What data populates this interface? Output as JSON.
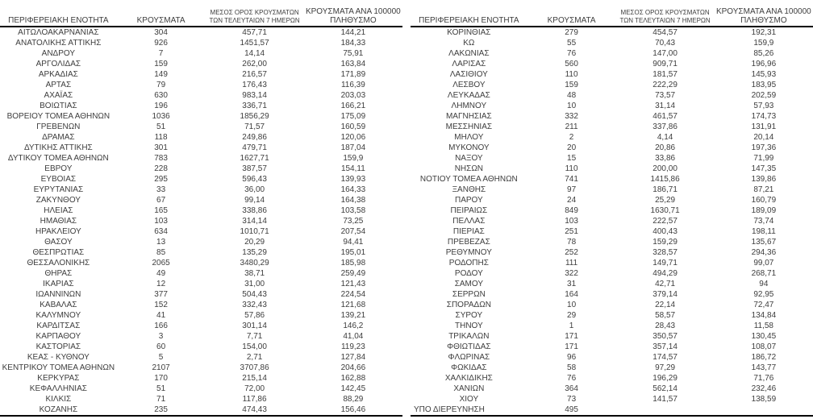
{
  "header": {
    "col_region": "ΠΕΡΙΦΕΡΕΙΑΚΗ ΕΝΟΤΗΤΑ",
    "col_cases": "ΚΡΟΥΣΜΑΤΑ",
    "col_avg7_line1": "ΜΕΣΟΣ ΟΡΟΣ ΚΡΟΥΣΜΑΤΩΝ",
    "col_avg7_line2": "ΤΩΝ ΤΕΛΕΥΤΑΙΩΝ 7 ΗΜΕΡΩΝ",
    "col_per100k_line1": "ΚΡΟΥΣΜΑΤΑ ΑΝΑ 100000",
    "col_per100k_line2": "ΠΛΗΘΥΣΜΟ"
  },
  "colors": {
    "text": "#3d3d3d",
    "border": "#000000",
    "background": "#ffffff"
  },
  "left_table": {
    "rows": [
      [
        "ΑΙΤΩΛΟΑΚΑΡΝΑΝΙΑΣ",
        "304",
        "457,71",
        "144,21"
      ],
      [
        "ΑΝΑΤΟΛΙΚΗΣ ΑΤΤΙΚΗΣ",
        "926",
        "1451,57",
        "184,33"
      ],
      [
        "ΑΝΔΡΟΥ",
        "7",
        "14,14",
        "75,91"
      ],
      [
        "ΑΡΓΟΛΙΔΑΣ",
        "159",
        "262,00",
        "163,84"
      ],
      [
        "ΑΡΚΑΔΙΑΣ",
        "149",
        "216,57",
        "171,89"
      ],
      [
        "ΑΡΤΑΣ",
        "79",
        "176,43",
        "116,39"
      ],
      [
        "ΑΧΑΪΑΣ",
        "630",
        "983,14",
        "203,03"
      ],
      [
        "ΒΟΙΩΤΙΑΣ",
        "196",
        "336,71",
        "166,21"
      ],
      [
        "ΒΟΡΕΙΟΥ ΤΟΜΕΑ ΑΘΗΝΩΝ",
        "1036",
        "1856,29",
        "175,09"
      ],
      [
        "ΓΡΕΒΕΝΩΝ",
        "51",
        "71,57",
        "160,59"
      ],
      [
        "ΔΡΑΜΑΣ",
        "118",
        "249,86",
        "120,06"
      ],
      [
        "ΔΥΤΙΚΗΣ ΑΤΤΙΚΗΣ",
        "301",
        "479,71",
        "187,04"
      ],
      [
        "ΔΥΤΙΚΟΥ ΤΟΜΕΑ ΑΘΗΝΩΝ",
        "783",
        "1627,71",
        "159,9"
      ],
      [
        "ΕΒΡΟΥ",
        "228",
        "387,57",
        "154,11"
      ],
      [
        "ΕΥΒΟΙΑΣ",
        "295",
        "596,43",
        "139,93"
      ],
      [
        "ΕΥΡΥΤΑΝΙΑΣ",
        "33",
        "36,00",
        "164,33"
      ],
      [
        "ΖΑΚΥΝΘΟΥ",
        "67",
        "99,14",
        "164,38"
      ],
      [
        "ΗΛΕΙΑΣ",
        "165",
        "338,86",
        "103,58"
      ],
      [
        "ΗΜΑΘΙΑΣ",
        "103",
        "314,14",
        "73,25"
      ],
      [
        "ΗΡΑΚΛΕΙΟΥ",
        "634",
        "1010,71",
        "207,54"
      ],
      [
        "ΘΑΣΟΥ",
        "13",
        "20,29",
        "94,41"
      ],
      [
        "ΘΕΣΠΡΩΤΙΑΣ",
        "85",
        "135,29",
        "195,01"
      ],
      [
        "ΘΕΣΣΑΛΟΝΙΚΗΣ",
        "2065",
        "3480,29",
        "185,98"
      ],
      [
        "ΘΗΡΑΣ",
        "49",
        "38,71",
        "259,49"
      ],
      [
        "ΙΚΑΡΙΑΣ",
        "12",
        "31,00",
        "121,43"
      ],
      [
        "ΙΩΑΝΝΙΝΩΝ",
        "377",
        "504,43",
        "224,54"
      ],
      [
        "ΚΑΒΑΛΑΣ",
        "152",
        "332,43",
        "121,68"
      ],
      [
        "ΚΑΛΥΜΝΟΥ",
        "41",
        "57,86",
        "139,21"
      ],
      [
        "ΚΑΡΔΙΤΣΑΣ",
        "166",
        "301,14",
        "146,2"
      ],
      [
        "ΚΑΡΠΑΘΟΥ",
        "3",
        "7,71",
        "41,04"
      ],
      [
        "ΚΑΣΤΟΡΙΑΣ",
        "60",
        "154,00",
        "119,23"
      ],
      [
        "ΚΕΑΣ - ΚΥΘΝΟΥ",
        "5",
        "2,71",
        "127,84"
      ],
      [
        "ΚΕΝΤΡΙΚΟΥ ΤΟΜΕΑ ΑΘΗΝΩΝ",
        "2107",
        "3707,86",
        "204,66"
      ],
      [
        "ΚΕΡΚΥΡΑΣ",
        "170",
        "215,14",
        "162,88"
      ],
      [
        "ΚΕΦΑΛΛΗΝΙΑΣ",
        "51",
        "72,00",
        "142,45"
      ],
      [
        "ΚΙΛΚΙΣ",
        "71",
        "117,86",
        "88,29"
      ],
      [
        "ΚΟΖΑΝΗΣ",
        "235",
        "474,43",
        "156,46"
      ]
    ]
  },
  "right_table": {
    "rows": [
      [
        "ΚΟΡΙΝΘΙΑΣ",
        "279",
        "454,57",
        "192,31"
      ],
      [
        "ΚΩ",
        "55",
        "70,43",
        "159,9"
      ],
      [
        "ΛΑΚΩΝΙΑΣ",
        "76",
        "147,00",
        "85,26"
      ],
      [
        "ΛΑΡΙΣΑΣ",
        "560",
        "909,71",
        "196,96"
      ],
      [
        "ΛΑΣΙΘΙΟΥ",
        "110",
        "181,57",
        "145,93"
      ],
      [
        "ΛΕΣΒΟΥ",
        "159",
        "222,29",
        "183,95"
      ],
      [
        "ΛΕΥΚΑΔΑΣ",
        "48",
        "73,57",
        "202,59"
      ],
      [
        "ΛΗΜΝΟΥ",
        "10",
        "31,14",
        "57,93"
      ],
      [
        "ΜΑΓΝΗΣΙΑΣ",
        "332",
        "461,57",
        "174,73"
      ],
      [
        "ΜΕΣΣΗΝΙΑΣ",
        "211",
        "337,86",
        "131,91"
      ],
      [
        "ΜΗΛΟΥ",
        "2",
        "4,14",
        "20,14"
      ],
      [
        "ΜΥΚΟΝΟΥ",
        "20",
        "20,86",
        "197,36"
      ],
      [
        "ΝΑΞΟΥ",
        "15",
        "33,86",
        "71,99"
      ],
      [
        "ΝΗΣΩΝ",
        "110",
        "200,00",
        "147,35"
      ],
      [
        "ΝΟΤΙΟΥ ΤΟΜΕΑ ΑΘΗΝΩΝ",
        "741",
        "1415,86",
        "139,86"
      ],
      [
        "ΞΑΝΘΗΣ",
        "97",
        "186,71",
        "87,21"
      ],
      [
        "ΠΑΡΟΥ",
        "24",
        "25,29",
        "160,79"
      ],
      [
        "ΠΕΙΡΑΙΩΣ",
        "849",
        "1630,71",
        "189,09"
      ],
      [
        "ΠΕΛΛΑΣ",
        "103",
        "222,57",
        "73,74"
      ],
      [
        "ΠΙΕΡΙΑΣ",
        "251",
        "400,43",
        "198,11"
      ],
      [
        "ΠΡΕΒΕΖΑΣ",
        "78",
        "159,29",
        "135,67"
      ],
      [
        "ΡΕΘΥΜΝΟΥ",
        "252",
        "328,57",
        "294,36"
      ],
      [
        "ΡΟΔΟΠΗΣ",
        "111",
        "149,71",
        "99,07"
      ],
      [
        "ΡΟΔΟΥ",
        "322",
        "494,29",
        "268,71"
      ],
      [
        "ΣΑΜΟΥ",
        "31",
        "42,71",
        "94"
      ],
      [
        "ΣΕΡΡΩΝ",
        "164",
        "379,14",
        "92,95"
      ],
      [
        "ΣΠΟΡΑΔΩΝ",
        "10",
        "22,14",
        "72,47"
      ],
      [
        "ΣΥΡΟΥ",
        "29",
        "58,57",
        "134,84"
      ],
      [
        "ΤΗΝΟΥ",
        "1",
        "28,43",
        "11,58"
      ],
      [
        "ΤΡΙΚΑΛΩΝ",
        "171",
        "350,57",
        "130,45"
      ],
      [
        "ΦΘΙΩΤΙΔΑΣ",
        "171",
        "357,14",
        "108,07"
      ],
      [
        "ΦΛΩΡΙΝΑΣ",
        "96",
        "174,57",
        "186,72"
      ],
      [
        "ΦΩΚΙΔΑΣ",
        "58",
        "97,29",
        "143,77"
      ],
      [
        "ΧΑΛΚΙΔΙΚΗΣ",
        "76",
        "196,29",
        "71,76"
      ],
      [
        "ΧΑΝΙΩΝ",
        "364",
        "562,14",
        "232,46"
      ],
      [
        "ΧΙΟΥ",
        "73",
        "141,57",
        "138,59"
      ]
    ],
    "footer": {
      "label": "ΥΠΟ ΔΙΕΡΕΥΝΗΣΗ",
      "cases": "495",
      "avg7": "",
      "per100k": ""
    }
  }
}
